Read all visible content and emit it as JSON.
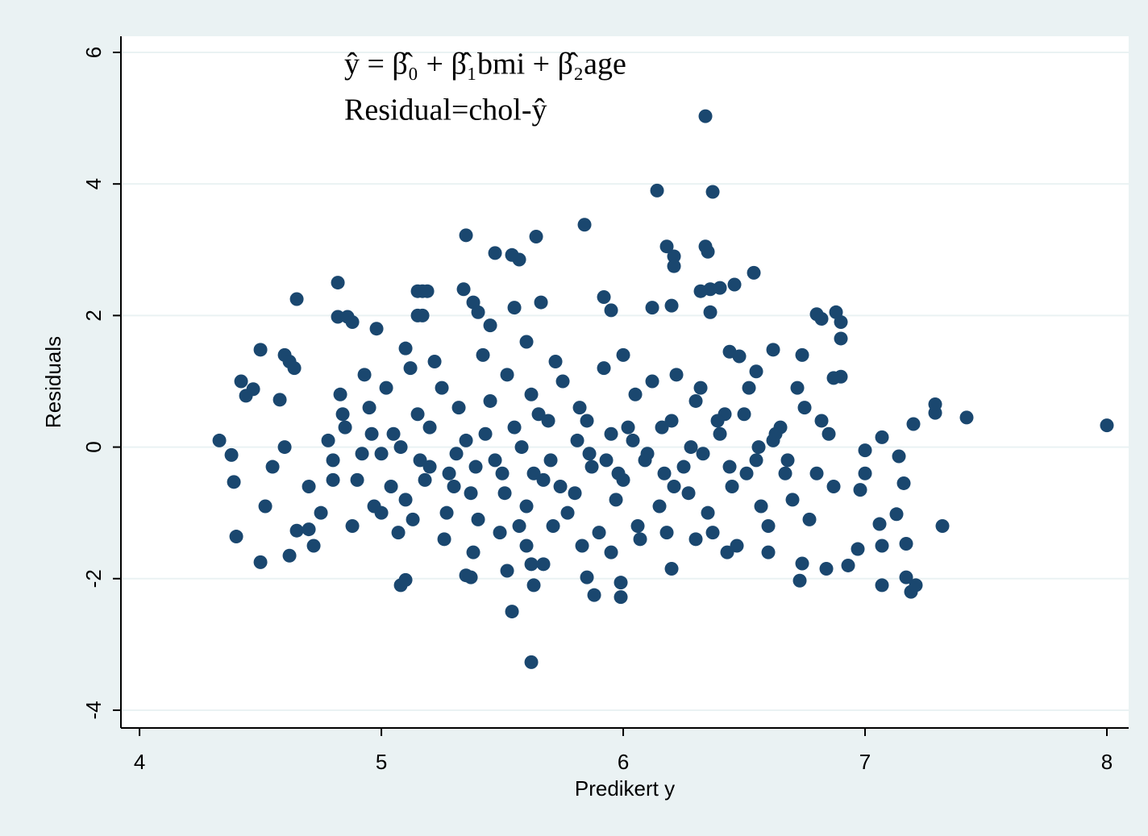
{
  "chart_data": {
    "type": "scatter",
    "annotations": [
      "ŷ = β̂₀ + β̂₁bmi + β̂₂age",
      "Residual=chol-ŷ"
    ],
    "x_label": "Predikert y",
    "y_label": "Residuals",
    "color": "#1a476f",
    "grid": true,
    "xlim": [
      3.923,
      8.09
    ],
    "xticks": [
      4,
      5,
      6,
      7,
      8
    ],
    "ylim": [
      -4.27,
      6.245
    ],
    "yticks": [
      -4,
      -2,
      0,
      2,
      4,
      6
    ],
    "x": [
      6.34,
      6.14,
      6.37,
      5.84,
      5.35,
      5.64,
      6.18,
      6.34,
      6.35,
      5.47,
      5.54,
      5.57,
      6.21,
      6.21,
      6.54,
      6.46,
      6.36,
      6.32,
      6.4,
      4.82,
      4.65,
      5.15,
      5.17,
      5.19,
      5.34,
      5.92,
      5.95,
      6.12,
      6.2,
      6.36,
      4.82,
      4.86,
      4.88,
      5.15,
      5.17,
      5.38,
      5.4,
      5.45,
      5.55,
      5.66,
      6.8,
      6.82,
      6.88,
      6.9,
      6.9,
      4.98,
      4.5,
      4.42,
      4.44,
      4.47,
      4.33,
      4.38,
      4.39,
      4.4,
      4.5,
      4.62,
      4.65,
      4.7,
      4.72,
      5.08,
      5.1,
      5.35,
      5.37,
      5.52,
      5.54,
      5.62,
      5.63,
      5.62,
      5.67,
      5.85,
      5.88,
      5.99,
      5.99,
      6.2,
      6.73,
      6.74,
      6.84,
      6.93,
      7.07,
      7.17,
      7.19,
      7.21,
      7.32,
      7.07,
      7.06,
      7.13,
      7.17,
      7.16,
      7.14,
      7.2,
      7.29,
      7.29,
      7.42,
      8.0,
      7.07,
      7.0,
      6.98,
      7.0,
      6.97,
      6.9,
      6.87,
      6.74,
      6.62,
      6.55,
      6.44,
      6.48,
      4.6,
      4.62,
      4.64,
      4.58,
      4.78,
      4.8,
      4.85,
      4.9,
      4.95,
      5.0,
      5.05,
      5.1,
      5.15,
      5.2,
      5.25,
      5.3,
      5.35,
      5.4,
      5.45,
      5.5,
      5.55,
      5.6,
      5.65,
      5.7,
      5.75,
      5.8,
      5.85,
      5.9,
      5.95,
      6.0,
      6.05,
      6.1,
      6.15,
      6.2,
      6.25,
      6.3,
      6.35,
      6.4,
      6.45,
      6.5,
      6.55,
      6.6,
      6.65,
      6.7,
      6.75,
      6.8,
      6.85,
      4.7,
      4.75,
      4.83,
      4.88,
      4.93,
      4.97,
      5.02,
      5.07,
      5.12,
      5.18,
      5.22,
      5.27,
      5.32,
      5.37,
      5.42,
      5.47,
      5.52,
      5.57,
      5.62,
      5.67,
      5.72,
      5.77,
      5.82,
      5.87,
      5.92,
      5.97,
      6.02,
      6.07,
      6.12,
      6.17,
      6.22,
      6.27,
      6.32,
      6.37,
      6.42,
      6.47,
      6.52,
      6.57,
      6.62,
      6.67,
      6.72,
      6.77,
      6.82,
      6.87,
      4.55,
      4.52,
      4.6,
      4.8,
      4.92,
      5.04,
      5.16,
      5.28,
      5.39,
      5.51,
      5.63,
      5.74,
      5.86,
      5.98,
      6.09,
      6.21,
      6.33,
      6.44,
      6.56,
      6.68,
      4.84,
      4.96,
      5.08,
      5.2,
      5.31,
      5.43,
      5.58,
      5.69,
      5.81,
      5.93,
      6.04,
      6.16,
      6.28,
      6.39,
      6.51,
      6.63,
      5.0,
      5.13,
      5.26,
      5.38,
      5.49,
      5.6,
      5.71,
      5.83,
      5.95,
      6.06,
      6.18,
      6.3,
      6.43,
      6.6,
      5.1,
      5.6,
      6.0
    ],
    "values": [
      5.03,
      3.9,
      3.88,
      3.38,
      3.22,
      3.2,
      3.05,
      3.05,
      2.97,
      2.95,
      2.92,
      2.85,
      2.9,
      2.75,
      2.65,
      2.47,
      2.4,
      2.37,
      2.42,
      2.5,
      2.25,
      2.37,
      2.37,
      2.37,
      2.4,
      2.28,
      2.08,
      2.12,
      2.15,
      2.05,
      1.98,
      1.98,
      1.9,
      2.0,
      2.0,
      2.2,
      2.05,
      1.85,
      2.12,
      2.2,
      2.02,
      1.95,
      2.05,
      1.9,
      1.65,
      1.8,
      1.48,
      1.0,
      0.78,
      0.88,
      0.1,
      -0.12,
      -0.53,
      -1.36,
      -1.75,
      -1.65,
      -1.27,
      -1.25,
      -1.5,
      -2.1,
      -2.02,
      -1.95,
      -1.98,
      -1.88,
      -2.5,
      -3.27,
      -2.1,
      -1.78,
      -1.78,
      -1.98,
      -2.25,
      -2.28,
      -2.06,
      -1.85,
      -2.03,
      -1.77,
      -1.85,
      -1.8,
      -2.1,
      -1.98,
      -2.2,
      -2.1,
      -1.2,
      -1.5,
      -1.17,
      -1.02,
      -1.47,
      -0.55,
      -0.14,
      0.35,
      0.52,
      0.65,
      0.45,
      0.33,
      0.15,
      -0.05,
      -0.65,
      -0.4,
      -1.55,
      1.07,
      1.05,
      1.4,
      1.48,
      1.15,
      1.45,
      1.38,
      1.4,
      1.3,
      1.2,
      0.72,
      0.1,
      -0.2,
      0.3,
      -0.5,
      0.6,
      -0.1,
      0.2,
      -0.8,
      0.5,
      -0.3,
      0.9,
      -0.6,
      0.1,
      -1.1,
      0.7,
      -0.4,
      0.3,
      -0.9,
      0.5,
      -0.2,
      1.0,
      -0.7,
      0.4,
      -1.3,
      0.2,
      -0.5,
      0.8,
      -0.1,
      -0.9,
      0.4,
      -0.3,
      0.7,
      -1.0,
      0.2,
      -0.6,
      0.5,
      -0.2,
      -1.2,
      0.3,
      -0.8,
      0.6,
      -0.4,
      0.2,
      -0.6,
      -1.0,
      0.8,
      -1.2,
      1.1,
      -0.9,
      0.9,
      -1.3,
      1.2,
      -0.5,
      1.3,
      -1.0,
      0.6,
      -0.7,
      1.4,
      -0.2,
      1.1,
      -1.2,
      0.8,
      -0.5,
      1.3,
      -1.0,
      0.6,
      -0.3,
      1.2,
      -0.8,
      0.3,
      -1.4,
      1.0,
      -0.4,
      1.1,
      -0.7,
      0.9,
      -1.3,
      0.5,
      -1.5,
      0.9,
      -0.9,
      0.1,
      -0.4,
      0.9,
      -1.1,
      0.4,
      -0.6,
      -0.3,
      -0.9,
      0.0,
      -0.5,
      -0.1,
      -0.6,
      -0.2,
      -0.4,
      -0.3,
      -0.7,
      -0.4,
      -0.6,
      -0.1,
      -0.4,
      -0.2,
      -0.6,
      -0.1,
      -0.3,
      0.0,
      -0.2,
      0.5,
      0.2,
      0.0,
      0.3,
      -0.1,
      0.2,
      0.0,
      0.4,
      0.1,
      -0.2,
      0.1,
      0.3,
      0.0,
      0.4,
      -0.4,
      0.2,
      -1.0,
      -1.1,
      -1.4,
      -1.6,
      -1.3,
      -1.5,
      -1.2,
      -1.5,
      -1.6,
      -1.2,
      -1.3,
      -1.4,
      -1.6,
      -1.6,
      1.5,
      1.6,
      1.4
    ]
  }
}
